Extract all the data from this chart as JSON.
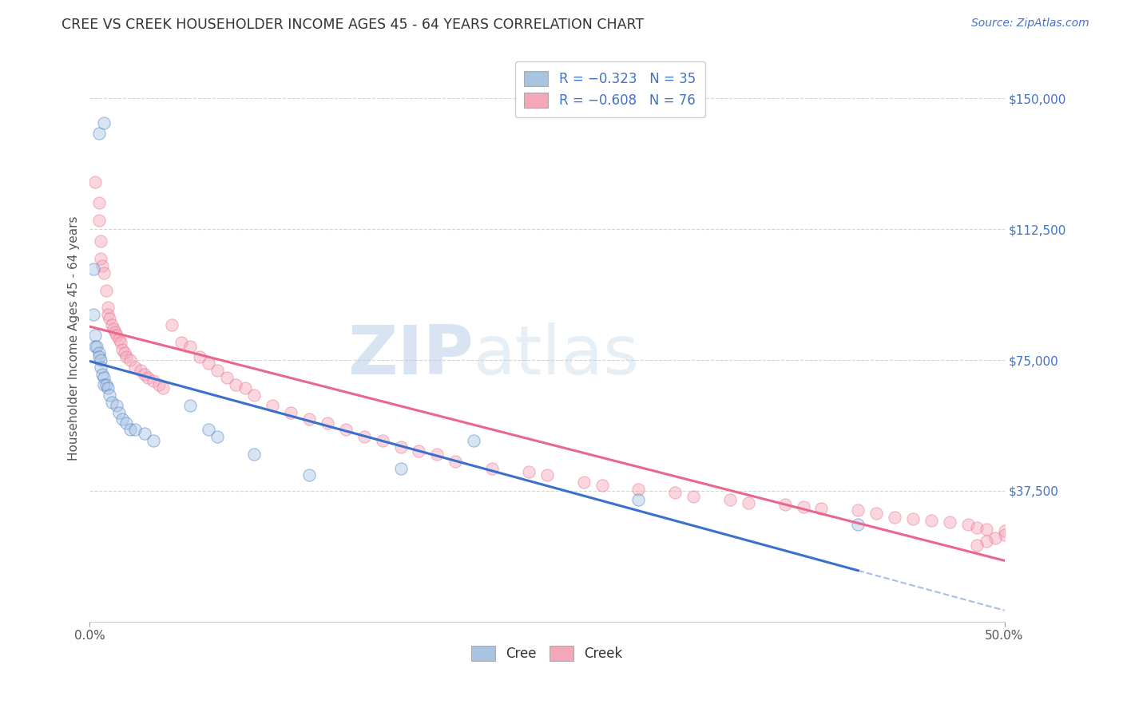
{
  "title": "CREE VS CREEK HOUSEHOLDER INCOME AGES 45 - 64 YEARS CORRELATION CHART",
  "source_text": "Source: ZipAtlas.com",
  "ylabel": "Householder Income Ages 45 - 64 years",
  "xlim": [
    0.0,
    0.5
  ],
  "ylim": [
    0,
    162500
  ],
  "yticks": [
    0,
    37500,
    75000,
    112500,
    150000
  ],
  "ytick_labels": [
    "",
    "$37,500",
    "$75,000",
    "$112,500",
    "$150,000"
  ],
  "xtick_labels": [
    "0.0%",
    "50.0%"
  ],
  "cree_color": "#a8c4e0",
  "creek_color": "#f4a7b9",
  "cree_line_color": "#3b6fcc",
  "creek_line_color": "#e8678a",
  "legend_label_cree": "R = −0.323   N = 35",
  "legend_label_creek": "R = −0.608   N = 76",
  "cree_x": [
    0.005,
    0.008,
    0.002,
    0.002,
    0.003,
    0.003,
    0.004,
    0.005,
    0.005,
    0.006,
    0.006,
    0.007,
    0.008,
    0.008,
    0.009,
    0.01,
    0.011,
    0.012,
    0.015,
    0.016,
    0.018,
    0.02,
    0.022,
    0.025,
    0.03,
    0.035,
    0.055,
    0.065,
    0.07,
    0.09,
    0.12,
    0.17,
    0.21,
    0.3,
    0.42
  ],
  "cree_y": [
    140000,
    143000,
    101000,
    88000,
    82000,
    79000,
    79000,
    77000,
    76000,
    75000,
    73000,
    71000,
    70000,
    68000,
    68000,
    67000,
    65000,
    63000,
    62000,
    60000,
    58000,
    57000,
    55000,
    55000,
    54000,
    52000,
    62000,
    55000,
    53000,
    48000,
    42000,
    44000,
    52000,
    35000,
    28000
  ],
  "creek_x": [
    0.003,
    0.005,
    0.005,
    0.006,
    0.006,
    0.007,
    0.008,
    0.009,
    0.01,
    0.01,
    0.011,
    0.012,
    0.013,
    0.014,
    0.015,
    0.016,
    0.017,
    0.018,
    0.019,
    0.02,
    0.022,
    0.025,
    0.028,
    0.03,
    0.032,
    0.035,
    0.038,
    0.04,
    0.045,
    0.05,
    0.055,
    0.06,
    0.065,
    0.07,
    0.075,
    0.08,
    0.085,
    0.09,
    0.1,
    0.11,
    0.12,
    0.13,
    0.14,
    0.15,
    0.16,
    0.17,
    0.18,
    0.19,
    0.2,
    0.22,
    0.24,
    0.25,
    0.27,
    0.28,
    0.3,
    0.32,
    0.33,
    0.35,
    0.36,
    0.38,
    0.39,
    0.4,
    0.42,
    0.43,
    0.44,
    0.45,
    0.46,
    0.47,
    0.48,
    0.485,
    0.49,
    0.5,
    0.5,
    0.495,
    0.49,
    0.485
  ],
  "creek_y": [
    126000,
    120000,
    115000,
    109000,
    104000,
    102000,
    100000,
    95000,
    90000,
    88000,
    87000,
    85000,
    84000,
    83000,
    82000,
    81000,
    80000,
    78000,
    77000,
    76000,
    75000,
    73000,
    72000,
    71000,
    70000,
    69000,
    68000,
    67000,
    85000,
    80000,
    79000,
    76000,
    74000,
    72000,
    70000,
    68000,
    67000,
    65000,
    62000,
    60000,
    58000,
    57000,
    55000,
    53000,
    52000,
    50000,
    49000,
    48000,
    46000,
    44000,
    43000,
    42000,
    40000,
    39000,
    38000,
    37000,
    36000,
    35000,
    34000,
    33500,
    33000,
    32500,
    32000,
    31000,
    30000,
    29500,
    29000,
    28500,
    28000,
    27000,
    26500,
    26000,
    25000,
    24000,
    23000,
    22000
  ],
  "background_color": "#ffffff",
  "grid_color": "#cccccc",
  "title_color": "#333333",
  "axis_label_color": "#555555",
  "marker_size": 120,
  "marker_alpha": 0.45,
  "cree_line_end_x": 0.42,
  "creek_line_start_x": 0.0,
  "creek_line_end_x": 0.5
}
